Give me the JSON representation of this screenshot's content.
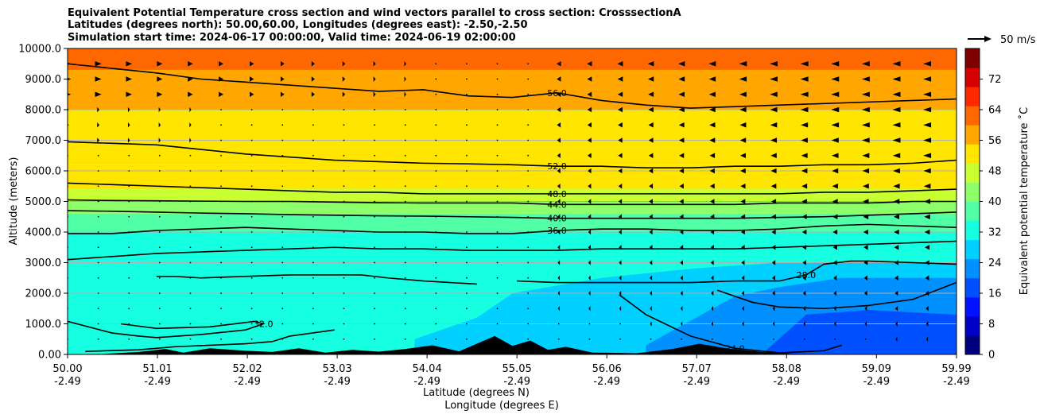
{
  "chart_data": {
    "type": "contour",
    "title_lines": [
      "Equivalent Potential Temperature cross section and wind vectors parallel to cross section: CrosssectionA",
      "Latitudes (degrees north): 50.00,60.00, Longitudes (degrees east): -2.50,-2.50",
      "Simulation start time: 2024-06-17 00:00:00, Valid time: 2024-06-19 02:00:00"
    ],
    "xlabel": "Latitude (degrees N)",
    "xlabel2": "Longitude (degrees E)",
    "ylabel": "Altitude (meters)",
    "colorbar_label": "Equivalent potential temperature ˚C",
    "quiver_key": "50 m/s",
    "xlim": [
      50.0,
      59.99
    ],
    "ylim": [
      0,
      10000
    ],
    "x_ticks": [
      {
        "lat": "50.00",
        "lon": "-2.49",
        "v": 50.0
      },
      {
        "lat": "51.01",
        "lon": "-2.49",
        "v": 51.01
      },
      {
        "lat": "52.02",
        "lon": "-2.49",
        "v": 52.02
      },
      {
        "lat": "53.03",
        "lon": "-2.49",
        "v": 53.03
      },
      {
        "lat": "54.04",
        "lon": "-2.49",
        "v": 54.04
      },
      {
        "lat": "55.05",
        "lon": "-2.49",
        "v": 55.05
      },
      {
        "lat": "56.06",
        "lon": "-2.49",
        "v": 56.06
      },
      {
        "lat": "57.07",
        "lon": "-2.49",
        "v": 57.07
      },
      {
        "lat": "58.08",
        "lon": "-2.49",
        "v": 58.08
      },
      {
        "lat": "59.09",
        "lon": "-2.49",
        "v": 59.09
      },
      {
        "lat": "59.99",
        "lon": "-2.49",
        "v": 59.99
      }
    ],
    "y_ticks": [
      {
        "label": "0.00",
        "v": 0
      },
      {
        "label": "1000.0",
        "v": 1000
      },
      {
        "label": "2000.0",
        "v": 2000
      },
      {
        "label": "3000.0",
        "v": 3000
      },
      {
        "label": "4000.0",
        "v": 4000
      },
      {
        "label": "5000.0",
        "v": 5000
      },
      {
        "label": "6000.0",
        "v": 6000
      },
      {
        "label": "7000.0",
        "v": 7000
      },
      {
        "label": "8000.0",
        "v": 8000
      },
      {
        "label": "9000.0",
        "v": 9000
      },
      {
        "label": "10000.0",
        "v": 10000
      }
    ],
    "colorbar_range": [
      0,
      80
    ],
    "colorbar_ticks": [
      "0",
      "8",
      "16",
      "24",
      "32",
      "40",
      "48",
      "56",
      "64",
      "72"
    ],
    "colorbar_tick_values": [
      0,
      8,
      16,
      24,
      32,
      40,
      48,
      56,
      64,
      72
    ],
    "colorbar_colors": [
      "#00007f",
      "#0000c8",
      "#0012ff",
      "#0050ff",
      "#0090ff",
      "#00d0ff",
      "#16ffe1",
      "#50ffa6",
      "#8dff6a",
      "#c7ff30",
      "#ffe500",
      "#ffa700",
      "#ff6800",
      "#ff2900",
      "#d50000",
      "#7f0000"
    ],
    "contours": [
      {
        "label": "56.0",
        "x": [
          50.0,
          50.5,
          51.0,
          51.5,
          52.0,
          52.5,
          53.0,
          53.5,
          54.0,
          54.5,
          55.0,
          55.5,
          56.0,
          56.5,
          57.0,
          57.5,
          58.0,
          58.5,
          59.0,
          59.5,
          59.99
        ],
        "y": [
          9500,
          9350,
          9200,
          9000,
          8900,
          8800,
          8700,
          8600,
          8650,
          8450,
          8400,
          8550,
          8300,
          8150,
          8050,
          8100,
          8150,
          8200,
          8250,
          8300,
          8350
        ]
      },
      {
        "label": "52.0",
        "x": [
          50.0,
          50.5,
          51.0,
          51.5,
          52.0,
          52.5,
          53.0,
          53.5,
          54.0,
          54.5,
          55.0,
          55.5,
          56.0,
          56.5,
          57.0,
          57.5,
          58.0,
          58.5,
          59.0,
          59.5,
          59.99
        ],
        "y": [
          6950,
          6900,
          6850,
          6700,
          6550,
          6450,
          6350,
          6300,
          6250,
          6230,
          6200,
          6150,
          6150,
          6100,
          6100,
          6150,
          6150,
          6200,
          6200,
          6250,
          6350
        ]
      },
      {
        "label": "48.0",
        "x": [
          50.0,
          50.5,
          51.0,
          51.5,
          52.0,
          52.5,
          53.0,
          53.5,
          54.0,
          54.5,
          55.0,
          55.5,
          56.0,
          56.5,
          57.0,
          57.5,
          58.0,
          58.5,
          59.0,
          59.5,
          59.99
        ],
        "y": [
          5600,
          5550,
          5500,
          5450,
          5400,
          5350,
          5300,
          5300,
          5250,
          5250,
          5250,
          5250,
          5250,
          5250,
          5250,
          5250,
          5250,
          5300,
          5300,
          5350,
          5400
        ]
      },
      {
        "label": "44.0",
        "x": [
          50.0,
          50.5,
          51.0,
          51.5,
          52.0,
          52.5,
          53.0,
          53.5,
          54.0,
          54.5,
          55.0,
          55.5,
          56.0,
          56.5,
          57.0,
          57.5,
          58.0,
          58.5,
          59.0,
          59.5,
          59.99
        ],
        "y": [
          5050,
          5030,
          5020,
          5010,
          5000,
          5000,
          4980,
          4960,
          4950,
          4950,
          4950,
          4900,
          4900,
          4900,
          4900,
          4900,
          4950,
          4950,
          4950,
          5000,
          5000
        ]
      },
      {
        "label": "40.0",
        "x": [
          50.0,
          50.5,
          51.0,
          51.5,
          52.0,
          52.5,
          53.0,
          53.5,
          54.0,
          54.5,
          55.0,
          55.5,
          56.0,
          56.5,
          57.0,
          57.5,
          58.0,
          58.5,
          59.0,
          59.5,
          59.99
        ],
        "y": [
          4700,
          4680,
          4650,
          4620,
          4600,
          4570,
          4550,
          4530,
          4520,
          4500,
          4480,
          4450,
          4450,
          4450,
          4450,
          4450,
          4480,
          4500,
          4550,
          4600,
          4650
        ]
      },
      {
        "label": "36.0",
        "x": [
          50.0,
          50.5,
          51.0,
          51.5,
          52.0,
          52.5,
          53.0,
          53.5,
          54.0,
          54.5,
          55.0,
          55.5,
          56.0,
          56.5,
          57.0,
          57.5,
          58.0,
          58.5,
          59.0,
          59.5,
          59.99
        ],
        "y": [
          3950,
          3950,
          4050,
          4100,
          4150,
          4100,
          4050,
          4000,
          4000,
          3950,
          3950,
          4050,
          4100,
          4100,
          4050,
          4050,
          4100,
          4200,
          4250,
          4200,
          4150
        ]
      },
      {
        "label": "",
        "x": [
          50.0,
          50.5,
          51.0,
          51.5,
          52.0,
          52.5,
          53.0,
          53.5,
          54.0,
          54.5,
          55.0,
          55.5,
          56.0,
          56.5,
          57.0,
          57.5,
          58.0,
          58.5,
          59.0,
          59.5,
          59.99
        ],
        "y": [
          3100,
          3200,
          3300,
          3350,
          3400,
          3450,
          3500,
          3450,
          3450,
          3400,
          3400,
          3400,
          3450,
          3450,
          3450,
          3450,
          3500,
          3550,
          3600,
          3650,
          3700
        ]
      },
      {
        "label": "28.0",
        "x": [
          55.05,
          55.5,
          56.0,
          56.5,
          57.0,
          57.5,
          58.0,
          58.3,
          58.5,
          58.8,
          59.0,
          59.5,
          59.99
        ],
        "y": [
          2400,
          2350,
          2350,
          2350,
          2350,
          2400,
          2400,
          2600,
          2950,
          3050,
          3050,
          3000,
          2950
        ]
      },
      {
        "label": "",
        "x": [
          51.0,
          51.2,
          51.5,
          52.0,
          52.5,
          53.0,
          53.3,
          53.6,
          54.0,
          54.3,
          54.6
        ],
        "y": [
          2550,
          2550,
          2500,
          2550,
          2600,
          2600,
          2600,
          2500,
          2400,
          2350,
          2300
        ]
      },
      {
        "label": "",
        "x": [
          57.3,
          57.7,
          58.0,
          58.5,
          59.0,
          59.5,
          59.99
        ],
        "y": [
          2100,
          1700,
          1550,
          1500,
          1600,
          1800,
          2350
        ]
      },
      {
        "label": "24.0",
        "x": [
          56.2,
          56.5,
          57.0,
          57.5,
          58.0,
          58.5,
          58.7
        ],
        "y": [
          1950,
          1300,
          600,
          200,
          50,
          120,
          300
        ]
      },
      {
        "label": "32.0",
        "x": [
          50.0,
          50.5,
          50.8,
          51.0,
          51.5,
          52.0,
          52.2,
          52.1,
          51.6,
          51.0,
          50.6
        ],
        "y": [
          1080,
          700,
          600,
          550,
          650,
          800,
          1000,
          1080,
          900,
          850,
          1000
        ]
      },
      {
        "label": "",
        "x": [
          50.2,
          50.8,
          51.2,
          51.6,
          52.0,
          52.3,
          52.5,
          53.0
        ],
        "y": [
          100,
          150,
          250,
          300,
          350,
          420,
          600,
          800
        ]
      }
    ],
    "shaded_regions": [
      {
        "level": 30,
        "x": [
          50.0,
          52.0,
          54.0,
          56.0,
          58.0,
          59.99,
          59.99,
          50.0
        ],
        "y": [
          3000,
          3050,
          3050,
          3150,
          3200,
          3300,
          0,
          0
        ]
      },
      {
        "level": 26,
        "x": [
          53.9,
          54.6,
          55.0,
          56.0,
          57.0,
          58.0,
          59.99,
          59.99,
          53.9
        ],
        "y": [
          500,
          1200,
          2000,
          2500,
          2800,
          3000,
          3000,
          0,
          0
        ]
      },
      {
        "level": 22,
        "x": [
          56.5,
          57.5,
          58.0,
          58.7,
          59.99,
          59.99,
          56.5
        ],
        "y": [
          300,
          1900,
          2200,
          2500,
          2500,
          0,
          0
        ]
      },
      {
        "level": 18,
        "x": [
          57.8,
          58.3,
          59.0,
          59.99,
          59.99,
          58.2
        ],
        "y": [
          0,
          1300,
          1450,
          1300,
          0,
          0
        ]
      }
    ],
    "terrain": [
      {
        "x": 50.0,
        "y": 0
      },
      {
        "x": 50.3,
        "y": 0
      },
      {
        "x": 50.8,
        "y": 80
      },
      {
        "x": 51.1,
        "y": 180
      },
      {
        "x": 51.3,
        "y": 60
      },
      {
        "x": 51.6,
        "y": 200
      },
      {
        "x": 52.0,
        "y": 120
      },
      {
        "x": 52.3,
        "y": 80
      },
      {
        "x": 52.6,
        "y": 200
      },
      {
        "x": 52.9,
        "y": 60
      },
      {
        "x": 53.2,
        "y": 150
      },
      {
        "x": 53.5,
        "y": 90
      },
      {
        "x": 53.8,
        "y": 180
      },
      {
        "x": 54.1,
        "y": 300
      },
      {
        "x": 54.4,
        "y": 100
      },
      {
        "x": 54.6,
        "y": 350
      },
      {
        "x": 54.8,
        "y": 600
      },
      {
        "x": 55.0,
        "y": 280
      },
      {
        "x": 55.2,
        "y": 450
      },
      {
        "x": 55.4,
        "y": 150
      },
      {
        "x": 55.6,
        "y": 250
      },
      {
        "x": 55.9,
        "y": 60
      },
      {
        "x": 56.4,
        "y": 40
      },
      {
        "x": 56.8,
        "y": 180
      },
      {
        "x": 57.1,
        "y": 350
      },
      {
        "x": 57.4,
        "y": 200
      },
      {
        "x": 57.8,
        "y": 80
      },
      {
        "x": 58.2,
        "y": 20
      },
      {
        "x": 58.6,
        "y": 0
      },
      {
        "x": 59.99,
        "y": 0
      }
    ],
    "wind_field": {
      "x_start": 50.0,
      "x_end": 59.99,
      "x_step": 0.345,
      "y_start": 0,
      "y_end": 9500,
      "y_step": 500,
      "scale_speed": 50
    }
  }
}
